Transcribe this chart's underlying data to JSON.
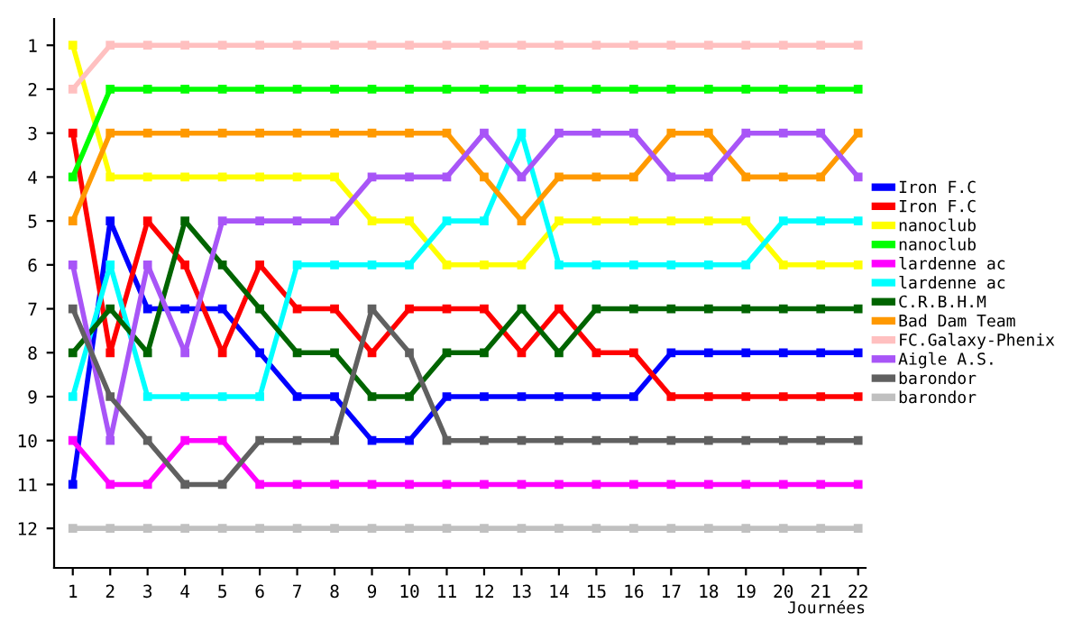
{
  "chart_data": {
    "type": "line",
    "xlabel": "Journées",
    "x": [
      1,
      2,
      3,
      4,
      5,
      6,
      7,
      8,
      9,
      10,
      11,
      12,
      13,
      14,
      15,
      16,
      17,
      18,
      19,
      20,
      21,
      22
    ],
    "xlim": [
      0.5,
      22.2
    ],
    "xticks": [
      1,
      2,
      3,
      4,
      5,
      6,
      7,
      8,
      9,
      10,
      11,
      12,
      13,
      14,
      15,
      16,
      17,
      18,
      19,
      20,
      21,
      22
    ],
    "ylim": [
      12.9,
      0.4
    ],
    "yticks": [
      1,
      2,
      3,
      4,
      5,
      6,
      7,
      8,
      9,
      10,
      11,
      12
    ],
    "grid": false,
    "legend": "right",
    "marker": "square",
    "line_style": "solid",
    "series": [
      {
        "name": "Iron F.C",
        "color": "#0000ff",
        "values": [
          11,
          5,
          7,
          7,
          7,
          8,
          9,
          9,
          10,
          10,
          9,
          9,
          9,
          9,
          9,
          9,
          8,
          8,
          8,
          8,
          8,
          8
        ]
      },
      {
        "name": "Iron F.C",
        "color": "#ff0000",
        "values": [
          3,
          8,
          5,
          6,
          8,
          6,
          7,
          7,
          8,
          7,
          7,
          7,
          8,
          7,
          8,
          8,
          9,
          9,
          9,
          9,
          9,
          9
        ]
      },
      {
        "name": "nanoclub",
        "color": "#ffff00",
        "values": [
          1,
          4,
          4,
          4,
          4,
          4,
          4,
          4,
          5,
          5,
          6,
          6,
          6,
          5,
          5,
          5,
          5,
          5,
          5,
          6,
          6,
          6
        ]
      },
      {
        "name": "nanoclub",
        "color": "#00ff00",
        "values": [
          4,
          2,
          2,
          2,
          2,
          2,
          2,
          2,
          2,
          2,
          2,
          2,
          2,
          2,
          2,
          2,
          2,
          2,
          2,
          2,
          2,
          2
        ]
      },
      {
        "name": "lardenne ac",
        "color": "#ff00ff",
        "values": [
          10,
          11,
          11,
          10,
          10,
          11,
          11,
          11,
          11,
          11,
          11,
          11,
          11,
          11,
          11,
          11,
          11,
          11,
          11,
          11,
          11,
          11
        ]
      },
      {
        "name": "lardenne ac",
        "color": "#00ffff",
        "values": [
          9,
          6,
          9,
          9,
          9,
          9,
          6,
          6,
          6,
          6,
          5,
          5,
          3,
          6,
          6,
          6,
          6,
          6,
          6,
          5,
          5,
          5
        ]
      },
      {
        "name": "C.R.B.H.M",
        "color": "#006400",
        "values": [
          8,
          7,
          8,
          5,
          6,
          7,
          8,
          8,
          9,
          9,
          8,
          8,
          7,
          8,
          7,
          7,
          7,
          7,
          7,
          7,
          7,
          7
        ]
      },
      {
        "name": "Bad Dam Team",
        "color": "#ff9900",
        "values": [
          5,
          3,
          3,
          3,
          3,
          3,
          3,
          3,
          3,
          3,
          3,
          4,
          5,
          4,
          4,
          4,
          3,
          3,
          4,
          4,
          4,
          3
        ]
      },
      {
        "name": "FC.Galaxy-Phenix",
        "color": "#ffc0c0",
        "values": [
          2,
          1,
          1,
          1,
          1,
          1,
          1,
          1,
          1,
          1,
          1,
          1,
          1,
          1,
          1,
          1,
          1,
          1,
          1,
          1,
          1,
          1
        ]
      },
      {
        "name": "Aigle A.S.",
        "color": "#a855f7",
        "values": [
          6,
          10,
          6,
          8,
          5,
          5,
          5,
          5,
          4,
          4,
          4,
          3,
          4,
          3,
          3,
          3,
          4,
          4,
          3,
          3,
          3,
          4
        ]
      },
      {
        "name": "barondor",
        "color": "#606060",
        "values": [
          7,
          9,
          10,
          11,
          11,
          10,
          10,
          10,
          7,
          8,
          10,
          10,
          10,
          10,
          10,
          10,
          10,
          10,
          10,
          10,
          10,
          10
        ]
      },
      {
        "name": "barondor",
        "color": "#c0c0c0",
        "values": [
          12,
          12,
          12,
          12,
          12,
          12,
          12,
          12,
          12,
          12,
          12,
          12,
          12,
          12,
          12,
          12,
          12,
          12,
          12,
          12,
          12,
          12
        ]
      }
    ]
  }
}
